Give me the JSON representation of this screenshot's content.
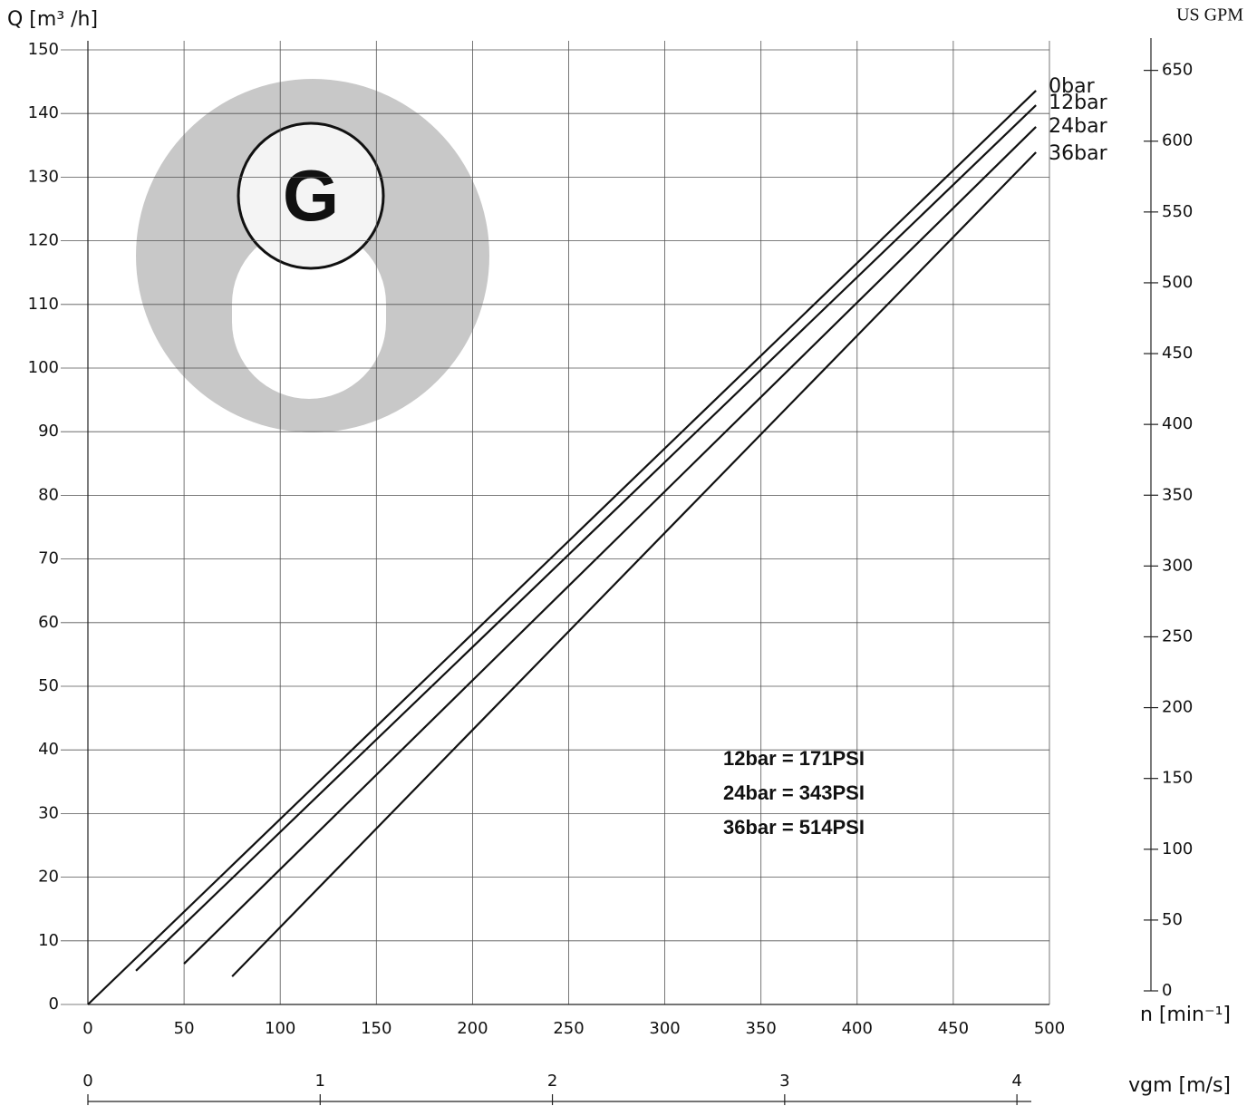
{
  "chart_data": {
    "type": "line",
    "ylabel": "Q [m³ /h]",
    "xlabel": "n [min⁻¹]",
    "y2label": "US GPM",
    "x2label": "vgm [m/s]",
    "logo": "G",
    "xlim": [
      0,
      500
    ],
    "xticks": [
      0,
      50,
      100,
      150,
      200,
      250,
      300,
      350,
      400,
      450,
      500
    ],
    "ylim": [
      0,
      150
    ],
    "yticks": [
      0,
      10,
      20,
      30,
      40,
      50,
      60,
      70,
      80,
      90,
      100,
      110,
      120,
      130,
      140,
      150
    ],
    "y2lim": [
      0,
      660
    ],
    "y2ticks": [
      0,
      50,
      100,
      150,
      200,
      250,
      300,
      350,
      400,
      450,
      500,
      550,
      600,
      650
    ],
    "x2lim": [
      0,
      4.14
    ],
    "x2ticks": [
      0,
      1,
      2,
      3,
      4
    ],
    "grid": true,
    "series": [
      {
        "name": "0bar",
        "color": "#111111",
        "x": [
          0,
          493
        ],
        "values": [
          0,
          143.6
        ]
      },
      {
        "name": "12bar",
        "color": "#111111",
        "x": [
          25,
          493
        ],
        "values": [
          5.3,
          141.3
        ]
      },
      {
        "name": "24bar",
        "color": "#111111",
        "x": [
          50,
          493
        ],
        "values": [
          6.4,
          137.9
        ]
      },
      {
        "name": "36bar",
        "color": "#111111",
        "x": [
          75,
          493
        ],
        "values": [
          4.4,
          133.9
        ]
      }
    ],
    "annotations": [
      "12bar = 171PSI",
      "24bar = 343PSI",
      "36bar = 514PSI"
    ]
  }
}
